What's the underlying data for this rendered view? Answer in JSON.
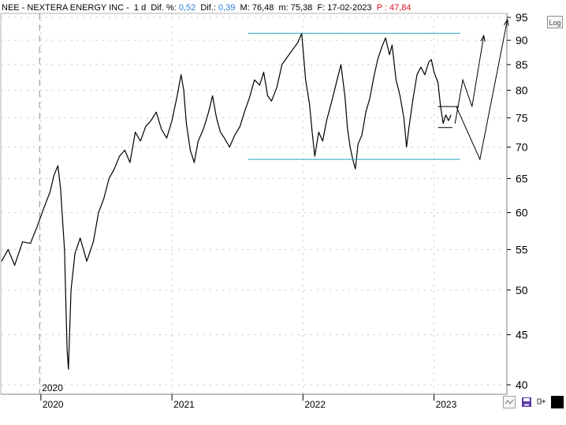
{
  "header": {
    "symbol": "NEE",
    "separator": " - ",
    "name": "NEXTERA ENERGY INC",
    "dash": " - ",
    "period": "1 d",
    "dif_pct_label": "Dif. %:",
    "dif_pct_value": "0,52",
    "dif_label": "Dif.:",
    "dif_value": "0,39",
    "m_label": "M:",
    "m_value": "76,48",
    "mm_label": "m:",
    "mm_value": "75,38",
    "f_label": "F:",
    "f_value": "17-02-2023",
    "p_label": "P :",
    "p_value": "47,84"
  },
  "toolbar": {
    "log_label": "Log",
    "icons": [
      "zigzag-icon",
      "save-icon",
      "move-icon",
      "black-square-icon"
    ]
  },
  "colors": {
    "price": "#000000",
    "range_line": "#1fa7b8",
    "header_value": "#2a7fd4",
    "header_alert": "#e0101f",
    "grid_dash": "#c8c8c8"
  },
  "chart_data": {
    "type": "line",
    "scale": "log",
    "ylim": [
      40,
      95
    ],
    "y_ticks": [
      40,
      45,
      50,
      55,
      60,
      65,
      70,
      75,
      80,
      85,
      90,
      95
    ],
    "x_ticks": [
      "2020",
      "2021",
      "2022",
      "2023"
    ],
    "x_tick_dates": [
      2020.0,
      2021.0,
      2022.0,
      2023.0
    ],
    "xlim": [
      2019.7,
      2023.55
    ],
    "vertical_marker": {
      "x": 2019.99,
      "label": "2020"
    },
    "series": [
      {
        "values": [
          [
            2019.7,
            53.5
          ],
          [
            2019.75,
            55.0
          ],
          [
            2019.8,
            53.0
          ],
          [
            2019.86,
            56.0
          ],
          [
            2019.92,
            55.8
          ],
          [
            2019.97,
            58.0
          ],
          [
            2020.02,
            60.5
          ],
          [
            2020.07,
            63.0
          ],
          [
            2020.1,
            65.5
          ],
          [
            2020.13,
            67.0
          ],
          [
            2020.15,
            63.5
          ],
          [
            2020.18,
            55.0
          ],
          [
            2020.2,
            43.5
          ],
          [
            2020.21,
            41.5
          ],
          [
            2020.23,
            50.0
          ],
          [
            2020.26,
            54.5
          ],
          [
            2020.3,
            56.5
          ],
          [
            2020.35,
            53.5
          ],
          [
            2020.4,
            56.0
          ],
          [
            2020.44,
            60.0
          ],
          [
            2020.48,
            62.0
          ],
          [
            2020.52,
            65.0
          ],
          [
            2020.56,
            66.5
          ],
          [
            2020.6,
            68.5
          ],
          [
            2020.64,
            69.5
          ],
          [
            2020.68,
            67.5
          ],
          [
            2020.72,
            72.5
          ],
          [
            2020.76,
            71.0
          ],
          [
            2020.8,
            73.5
          ],
          [
            2020.84,
            74.5
          ],
          [
            2020.88,
            76.0
          ],
          [
            2020.92,
            73.0
          ],
          [
            2020.96,
            71.5
          ],
          [
            2021.0,
            74.5
          ],
          [
            2021.04,
            79.0
          ],
          [
            2021.07,
            83.0
          ],
          [
            2021.09,
            80.0
          ],
          [
            2021.11,
            74.0
          ],
          [
            2021.14,
            69.5
          ],
          [
            2021.17,
            67.5
          ],
          [
            2021.2,
            71.0
          ],
          [
            2021.24,
            73.0
          ],
          [
            2021.28,
            76.0
          ],
          [
            2021.31,
            79.0
          ],
          [
            2021.34,
            75.0
          ],
          [
            2021.37,
            72.5
          ],
          [
            2021.4,
            71.5
          ],
          [
            2021.44,
            70.0
          ],
          [
            2021.48,
            72.0
          ],
          [
            2021.52,
            73.5
          ],
          [
            2021.56,
            76.5
          ],
          [
            2021.59,
            78.5
          ],
          [
            2021.63,
            82.0
          ],
          [
            2021.67,
            81.0
          ],
          [
            2021.7,
            83.5
          ],
          [
            2021.73,
            79.0
          ],
          [
            2021.76,
            78.0
          ],
          [
            2021.8,
            80.5
          ],
          [
            2021.84,
            85.0
          ],
          [
            2021.88,
            86.5
          ],
          [
            2021.92,
            88.0
          ],
          [
            2021.96,
            89.5
          ],
          [
            2021.99,
            91.5
          ],
          [
            2022.02,
            82.0
          ],
          [
            2022.05,
            77.5
          ],
          [
            2022.07,
            72.5
          ],
          [
            2022.09,
            68.5
          ],
          [
            2022.12,
            72.5
          ],
          [
            2022.15,
            71.0
          ],
          [
            2022.18,
            74.5
          ],
          [
            2022.22,
            78.0
          ],
          [
            2022.26,
            82.0
          ],
          [
            2022.29,
            85.0
          ],
          [
            2022.32,
            79.0
          ],
          [
            2022.34,
            73.0
          ],
          [
            2022.36,
            70.0
          ],
          [
            2022.38,
            68.0
          ],
          [
            2022.4,
            66.5
          ],
          [
            2022.42,
            70.5
          ],
          [
            2022.45,
            72.0
          ],
          [
            2022.48,
            76.0
          ],
          [
            2022.51,
            78.5
          ],
          [
            2022.54,
            82.5
          ],
          [
            2022.57,
            86.0
          ],
          [
            2022.6,
            88.5
          ],
          [
            2022.63,
            90.5
          ],
          [
            2022.66,
            87.0
          ],
          [
            2022.68,
            89.0
          ],
          [
            2022.71,
            82.0
          ],
          [
            2022.74,
            79.0
          ],
          [
            2022.77,
            75.0
          ],
          [
            2022.79,
            70.0
          ],
          [
            2022.81,
            73.5
          ],
          [
            2022.84,
            78.5
          ],
          [
            2022.87,
            83.0
          ],
          [
            2022.9,
            84.5
          ],
          [
            2022.93,
            83.0
          ],
          [
            2022.96,
            85.5
          ],
          [
            2022.98,
            86.0
          ],
          [
            2023.0,
            83.5
          ],
          [
            2023.03,
            81.5
          ],
          [
            2023.05,
            77.0
          ],
          [
            2023.07,
            74.0
          ],
          [
            2023.09,
            75.5
          ],
          [
            2023.11,
            74.5
          ],
          [
            2023.13,
            75.5
          ]
        ]
      }
    ],
    "annotations": {
      "resistance": {
        "y": 91.5,
        "x": [
          2021.58,
          2023.2
        ]
      },
      "support": {
        "y": 68.0,
        "x": [
          2021.58,
          2023.2
        ]
      },
      "short_lines": [
        {
          "y": 77.0,
          "x": [
            2023.03,
            2023.19
          ]
        },
        {
          "y": 73.3,
          "x": [
            2023.03,
            2023.14
          ]
        }
      ],
      "projection_up": [
        [
          2023.16,
          74.0
        ],
        [
          2023.22,
          82.0
        ],
        [
          2023.29,
          77.0
        ],
        [
          2023.38,
          91.0
        ]
      ],
      "projection_down": [
        [
          2023.17,
          77.0
        ],
        [
          2023.35,
          68.0
        ],
        [
          2023.56,
          94.5
        ]
      ]
    }
  }
}
